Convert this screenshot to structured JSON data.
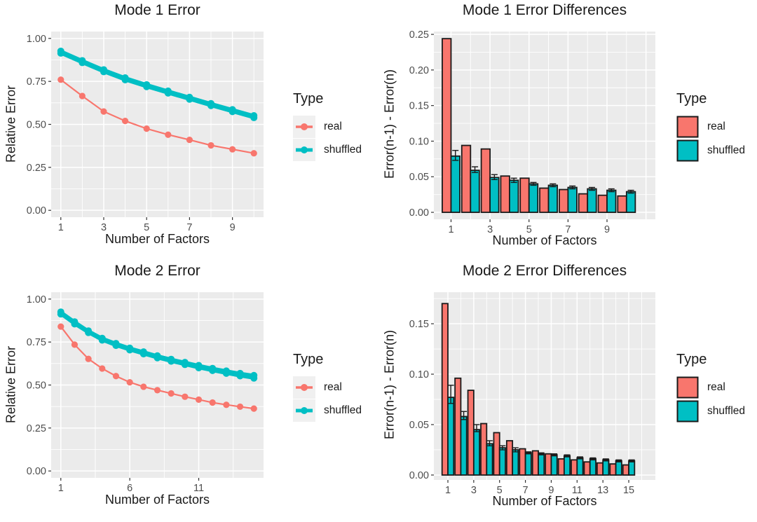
{
  "palette": {
    "real": "#F8766D",
    "shuffled": "#00BFC4",
    "panel_bg": "#EBEBEB",
    "grid": "#FFFFFF",
    "tick_text": "#4D4D4D",
    "axis_text": "#1A1A1A",
    "bar_stroke": "#1A1A1A",
    "legend_key_bg": "#F0F0F0"
  },
  "legend": {
    "title": "Type",
    "items": [
      {
        "label": "real",
        "color": "#F8766D"
      },
      {
        "label": "shuffled",
        "color": "#00BFC4"
      }
    ]
  },
  "chart_data": [
    {
      "type": "line",
      "title": "Mode 1 Error",
      "xlabel": "Number of Factors",
      "ylabel": "Relative Error",
      "x": [
        1,
        2,
        3,
        4,
        5,
        6,
        7,
        8,
        9,
        10
      ],
      "series": [
        {
          "name": "real",
          "color": "#F8766D",
          "lw": 2.2,
          "r": 4.6,
          "values": [
            0.76,
            0.665,
            0.575,
            0.52,
            0.475,
            0.44,
            0.41,
            0.378,
            0.355,
            0.332
          ]
        },
        {
          "name": "shuffled",
          "color": "#00BFC4",
          "lw": 4.5,
          "r": 5,
          "values": [
            0.926,
            0.871,
            0.818,
            0.771,
            0.731,
            0.694,
            0.658,
            0.621,
            0.586,
            0.551
          ]
        },
        {
          "name": "shuffled",
          "color": "#00BFC4",
          "lw": 4.5,
          "r": 5,
          "values": [
            0.914,
            0.859,
            0.806,
            0.759,
            0.719,
            0.682,
            0.646,
            0.609,
            0.574,
            0.539
          ]
        }
      ],
      "xticks": [
        1,
        3,
        5,
        7,
        9
      ],
      "xtick_labels": [
        "1",
        "3",
        "5",
        "7",
        "9"
      ],
      "xminor": [
        2,
        4,
        6,
        8,
        10
      ],
      "xmajor_extra": [],
      "yticks": [
        0,
        0.25,
        0.5,
        0.75,
        1
      ],
      "ytick_labels": [
        "0.00",
        "0.25",
        "0.50",
        "0.75",
        "1.00"
      ],
      "yminor": [
        0.125,
        0.375,
        0.625,
        0.875
      ],
      "xlim": [
        0.55,
        10.45
      ],
      "ylim": [
        -0.04,
        1.04
      ],
      "grid": "on",
      "legend_position": "right"
    },
    {
      "type": "bar",
      "title": "Mode 1 Error Differences",
      "xlabel": "Number of Factors",
      "ylabel": "Error(n-1) - Error(n)",
      "x": [
        1,
        2,
        3,
        4,
        5,
        6,
        7,
        8,
        9,
        10
      ],
      "series": [
        {
          "name": "real",
          "color": "#F8766D",
          "values": [
            0.244,
            0.094,
            0.089,
            0.051,
            0.048,
            0.034,
            0.032,
            0.026,
            0.024,
            0.023
          ]
        },
        {
          "name": "shuffled",
          "color": "#00BFC4",
          "values": [
            0.079,
            0.059,
            0.049,
            0.045,
            0.04,
            0.038,
            0.035,
            0.033,
            0.031,
            0.029
          ],
          "errors": [
            [
              0.073,
              0.087
            ],
            [
              0.056,
              0.064
            ],
            [
              0.046,
              0.053
            ],
            [
              0.042,
              0.048
            ],
            [
              0.038,
              0.042
            ],
            [
              0.036,
              0.04
            ],
            [
              0.033,
              0.037
            ],
            [
              0.031,
              0.035
            ],
            [
              0.029,
              0.033
            ],
            [
              0.027,
              0.031
            ]
          ]
        }
      ],
      "xticks": [
        1,
        3,
        5,
        7,
        9
      ],
      "xtick_labels": [
        "1",
        "3",
        "5",
        "7",
        "9"
      ],
      "xminor": [
        2,
        4,
        6,
        8,
        10
      ],
      "xmajor_extra": [
        11
      ],
      "yticks": [
        0,
        0.05,
        0.1,
        0.15,
        0.2,
        0.25
      ],
      "ytick_labels": [
        "0.00",
        "0.05",
        "0.10",
        "0.15",
        "0.20",
        "0.25"
      ],
      "yminor": [
        0.025,
        0.075,
        0.125,
        0.175,
        0.225
      ],
      "xlim": [
        0.12,
        11.48
      ],
      "ylim": [
        -0.0098,
        0.254
      ],
      "grid": "on",
      "legend_position": "right"
    },
    {
      "type": "line",
      "title": "Mode 2 Error",
      "xlabel": "Number of Factors",
      "ylabel": "Relative Error",
      "x": [
        1,
        2,
        3,
        4,
        5,
        6,
        7,
        8,
        9,
        10,
        11,
        12,
        13,
        14,
        15
      ],
      "series": [
        {
          "name": "real",
          "color": "#F8766D",
          "lw": 2.2,
          "r": 4.6,
          "values": [
            0.84,
            0.735,
            0.652,
            0.596,
            0.552,
            0.516,
            0.49,
            0.47,
            0.451,
            0.432,
            0.415,
            0.398,
            0.385,
            0.374,
            0.363
          ]
        },
        {
          "name": "shuffled",
          "color": "#00BFC4",
          "lw": 4.5,
          "r": 5,
          "values": [
            0.925,
            0.868,
            0.815,
            0.772,
            0.742,
            0.715,
            0.693,
            0.67,
            0.65,
            0.632,
            0.614,
            0.597,
            0.582,
            0.568,
            0.556
          ]
        },
        {
          "name": "shuffled",
          "color": "#00BFC4",
          "lw": 4.5,
          "r": 5,
          "values": [
            0.913,
            0.855,
            0.805,
            0.761,
            0.73,
            0.704,
            0.681,
            0.658,
            0.638,
            0.619,
            0.6,
            0.584,
            0.568,
            0.553,
            0.54
          ]
        }
      ],
      "xticks": [
        1,
        6,
        11
      ],
      "xtick_labels": [
        "1",
        "6",
        "11"
      ],
      "xminor": [
        3.5,
        8.5,
        13.5
      ],
      "xmajor_extra": [],
      "yticks": [
        0,
        0.25,
        0.5,
        0.75,
        1
      ],
      "ytick_labels": [
        "0.00",
        "0.25",
        "0.50",
        "0.75",
        "1.00"
      ],
      "yminor": [
        0.125,
        0.375,
        0.625,
        0.875
      ],
      "xlim": [
        0.3,
        15.7
      ],
      "ylim": [
        -0.04,
        1.04
      ],
      "grid": "on",
      "legend_position": "right"
    },
    {
      "type": "bar",
      "title": "Mode 2 Error Differences",
      "xlabel": "Number of Factors",
      "ylabel": "Error(n-1) - Error(n)",
      "x": [
        1,
        2,
        3,
        4,
        5,
        6,
        7,
        8,
        9,
        10,
        11,
        12,
        13,
        14,
        15
      ],
      "series": [
        {
          "name": "real",
          "color": "#F8766D",
          "values": [
            0.17,
            0.096,
            0.084,
            0.051,
            0.042,
            0.034,
            0.026,
            0.024,
            0.021,
            0.016,
            0.015,
            0.013,
            0.012,
            0.011,
            0.01
          ]
        },
        {
          "name": "shuffled",
          "color": "#00BFC4",
          "values": [
            0.077,
            0.058,
            0.045,
            0.031,
            0.027,
            0.025,
            0.022,
            0.021,
            0.02,
            0.019,
            0.017,
            0.016,
            0.015,
            0.014,
            0.014
          ],
          "errors": [
            [
              0.071,
              0.089
            ],
            [
              0.055,
              0.063
            ],
            [
              0.043,
              0.05
            ],
            [
              0.029,
              0.034
            ],
            [
              0.025,
              0.029
            ],
            [
              0.023,
              0.027
            ],
            [
              0.021,
              0.023
            ],
            [
              0.02,
              0.022
            ],
            [
              0.019,
              0.021
            ],
            [
              0.018,
              0.02
            ],
            [
              0.016,
              0.018
            ],
            [
              0.015,
              0.017
            ],
            [
              0.014,
              0.016
            ],
            [
              0.013,
              0.015
            ],
            [
              0.013,
              0.015
            ]
          ]
        }
      ],
      "xticks": [
        1,
        3,
        5,
        7,
        9,
        11,
        13,
        15
      ],
      "xtick_labels": [
        "1",
        "3",
        "5",
        "7",
        "9",
        "11",
        "13",
        "15"
      ],
      "xminor": [
        2,
        4,
        6,
        8,
        10,
        12,
        14,
        16
      ],
      "xmajor_extra": [],
      "yticks": [
        0,
        0.05,
        0.1,
        0.15
      ],
      "ytick_labels": [
        "0.00",
        "0.05",
        "0.10",
        "0.15"
      ],
      "yminor": [
        0.025,
        0.075,
        0.125,
        0.175
      ],
      "xlim": [
        -0.085,
        17.06
      ],
      "ylim": [
        -0.0049,
        0.1813
      ],
      "grid": "on",
      "legend_position": "right"
    }
  ]
}
